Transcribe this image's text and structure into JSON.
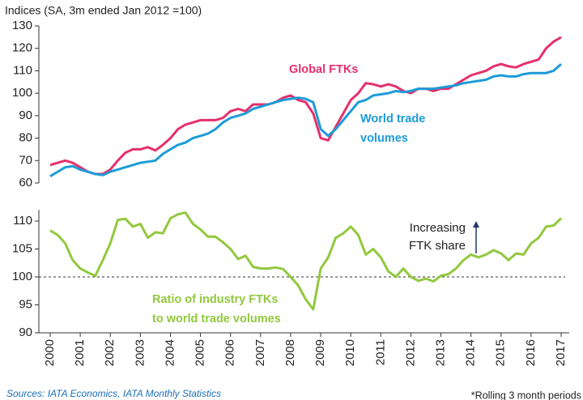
{
  "chart_data": [
    {
      "type": "line",
      "y_label": "Indices (SA, 3m ended Jan 2012 =100)",
      "x": [
        2000,
        2000.25,
        2000.5,
        2000.75,
        2001,
        2001.25,
        2001.5,
        2001.75,
        2002,
        2002.25,
        2002.5,
        2002.75,
        2003,
        2003.25,
        2003.5,
        2003.75,
        2004,
        2004.25,
        2004.5,
        2004.75,
        2005,
        2005.25,
        2005.5,
        2005.75,
        2006,
        2006.25,
        2006.5,
        2006.75,
        2007,
        2007.25,
        2007.5,
        2007.75,
        2008,
        2008.25,
        2008.5,
        2008.75,
        2009,
        2009.25,
        2009.5,
        2009.75,
        2010,
        2010.25,
        2010.5,
        2010.75,
        2011,
        2011.25,
        2011.5,
        2011.75,
        2012,
        2012.25,
        2012.5,
        2012.75,
        2013,
        2013.25,
        2013.5,
        2013.75,
        2014,
        2014.25,
        2014.5,
        2014.75,
        2015,
        2015.25,
        2015.5,
        2015.75,
        2016,
        2016.25,
        2016.5,
        2016.75,
        2017
      ],
      "xlim": [
        2000,
        2017
      ],
      "ylim": [
        60,
        130
      ],
      "yticks": [
        60,
        70,
        80,
        90,
        100,
        110,
        120,
        130
      ],
      "series": [
        {
          "name": "Global FTKs",
          "color": "#e5306c",
          "values": [
            68,
            69,
            70,
            69,
            67,
            65,
            64,
            64,
            66,
            70,
            73.5,
            75,
            75,
            76,
            74.5,
            77,
            80,
            84,
            86,
            87,
            88,
            88,
            88,
            89,
            92,
            93,
            92,
            95,
            95,
            95,
            96,
            98,
            99,
            97,
            96,
            91,
            80,
            79,
            85,
            91,
            97,
            100,
            104.5,
            104,
            103,
            104,
            103,
            101,
            100,
            102,
            102,
            101,
            102,
            102,
            104,
            106,
            108,
            109,
            110,
            112,
            113,
            112,
            111.5,
            113,
            114,
            115,
            120,
            123,
            125
          ]
        },
        {
          "name": "World trade volumes",
          "color": "#1d9bd7",
          "label_lines": [
            "World trade",
            "volumes"
          ],
          "values": [
            63,
            65,
            67,
            67.5,
            66,
            65,
            64,
            63.5,
            65,
            66,
            67,
            68,
            69,
            69.5,
            70,
            73,
            75,
            77,
            78,
            80,
            81,
            82,
            84,
            87,
            89,
            90,
            91,
            93,
            94,
            95,
            96,
            97,
            97.5,
            98,
            97.5,
            96,
            84,
            81,
            84,
            88,
            92,
            96,
            97,
            99,
            99.5,
            100,
            101,
            100.5,
            101,
            102,
            102,
            102,
            102.5,
            103,
            103.5,
            104.5,
            105,
            105.5,
            106,
            107.5,
            108,
            107.5,
            107.5,
            108.5,
            109,
            109,
            109,
            110,
            113
          ]
        }
      ]
    },
    {
      "type": "line",
      "x": [
        2000,
        2000.25,
        2000.5,
        2000.75,
        2001,
        2001.25,
        2001.5,
        2001.75,
        2002,
        2002.25,
        2002.5,
        2002.75,
        2003,
        2003.25,
        2003.5,
        2003.75,
        2004,
        2004.25,
        2004.5,
        2004.75,
        2005,
        2005.25,
        2005.5,
        2005.75,
        2006,
        2006.25,
        2006.5,
        2006.75,
        2007,
        2007.25,
        2007.5,
        2007.75,
        2008,
        2008.25,
        2008.5,
        2008.75,
        2009,
        2009.25,
        2009.5,
        2009.75,
        2010,
        2010.25,
        2010.5,
        2010.75,
        2011,
        2011.25,
        2011.5,
        2011.75,
        2012,
        2012.25,
        2012.5,
        2012.75,
        2013,
        2013.25,
        2013.5,
        2013.75,
        2014,
        2014.25,
        2014.5,
        2014.75,
        2015,
        2015.25,
        2015.5,
        2015.75,
        2016,
        2016.25,
        2016.5,
        2016.75,
        2017
      ],
      "xlim": [
        2000,
        2017
      ],
      "xticks": [
        2000,
        2001,
        2002,
        2003,
        2004,
        2005,
        2006,
        2007,
        2008,
        2009,
        2010,
        2011,
        2012,
        2013,
        2014,
        2015,
        2016,
        2017
      ],
      "ylim": [
        90,
        112
      ],
      "yticks": [
        90,
        95,
        100,
        105,
        110
      ],
      "reference_line": 100,
      "series": [
        {
          "name": "Ratio of industry FTKs to world trade volumes",
          "label_lines": [
            "Ratio of industry FTKs",
            "to world trade volumes"
          ],
          "color": "#92c83e",
          "values": [
            108.3,
            107.5,
            106,
            103,
            101.5,
            100.8,
            100.2,
            103,
            106,
            110.2,
            110.4,
            109,
            109.5,
            107,
            108,
            107.8,
            110.5,
            111.2,
            111.5,
            109.5,
            108.5,
            107.2,
            107.2,
            106.2,
            105,
            103.2,
            103.8,
            101.8,
            101.5,
            101.5,
            101.7,
            101.4,
            100,
            98.5,
            96,
            94.2,
            101.5,
            103.5,
            107,
            107.8,
            109,
            107.5,
            104,
            105,
            103.5,
            101,
            100,
            101.5,
            100,
            99.3,
            99.7,
            99.2,
            100.2,
            100.5,
            101.5,
            103,
            104,
            103.5,
            104,
            104.8,
            104.2,
            103,
            104.2,
            104,
            106,
            107,
            109,
            109.2,
            110.5
          ]
        }
      ],
      "annotation_lines": [
        "Increasing",
        "FTK share"
      ]
    }
  ],
  "footer": {
    "source": "Sources: IATA Economics, IATA Monthly Statistics",
    "note": "*Rolling 3 month periods"
  }
}
